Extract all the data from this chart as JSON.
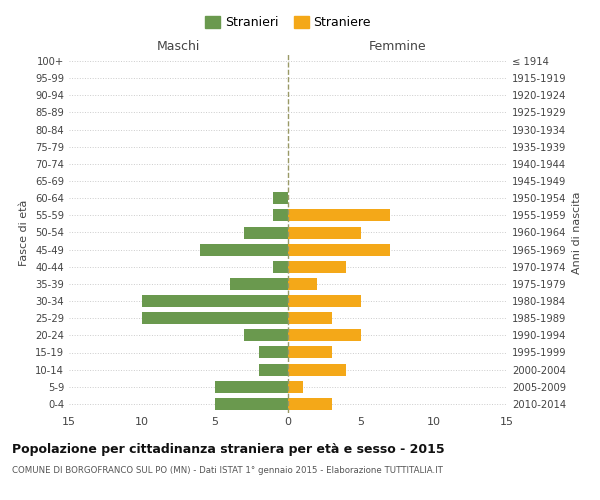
{
  "age_groups": [
    "100+",
    "95-99",
    "90-94",
    "85-89",
    "80-84",
    "75-79",
    "70-74",
    "65-69",
    "60-64",
    "55-59",
    "50-54",
    "45-49",
    "40-44",
    "35-39",
    "30-34",
    "25-29",
    "20-24",
    "15-19",
    "10-14",
    "5-9",
    "0-4"
  ],
  "birth_years": [
    "≤ 1914",
    "1915-1919",
    "1920-1924",
    "1925-1929",
    "1930-1934",
    "1935-1939",
    "1940-1944",
    "1945-1949",
    "1950-1954",
    "1955-1959",
    "1960-1964",
    "1965-1969",
    "1970-1974",
    "1975-1979",
    "1980-1984",
    "1985-1989",
    "1990-1994",
    "1995-1999",
    "2000-2004",
    "2005-2009",
    "2010-2014"
  ],
  "maschi": [
    0,
    0,
    0,
    0,
    0,
    0,
    0,
    0,
    1,
    1,
    3,
    6,
    1,
    4,
    10,
    10,
    3,
    2,
    2,
    5,
    5
  ],
  "femmine": [
    0,
    0,
    0,
    0,
    0,
    0,
    0,
    0,
    0,
    7,
    5,
    7,
    4,
    2,
    5,
    3,
    5,
    3,
    4,
    1,
    3
  ],
  "maschi_color": "#6a994e",
  "femmine_color": "#f4a818",
  "background_color": "#ffffff",
  "grid_color": "#cccccc",
  "title": "Popolazione per cittadinanza straniera per età e sesso - 2015",
  "subtitle": "COMUNE DI BORGOFRANCO SUL PO (MN) - Dati ISTAT 1° gennaio 2015 - Elaborazione TUTTITALIA.IT",
  "xlabel_left": "Maschi",
  "xlabel_right": "Femmine",
  "ylabel_left": "Fasce di età",
  "ylabel_right": "Anni di nascita",
  "legend_maschi": "Stranieri",
  "legend_femmine": "Straniere",
  "xlim": 15
}
